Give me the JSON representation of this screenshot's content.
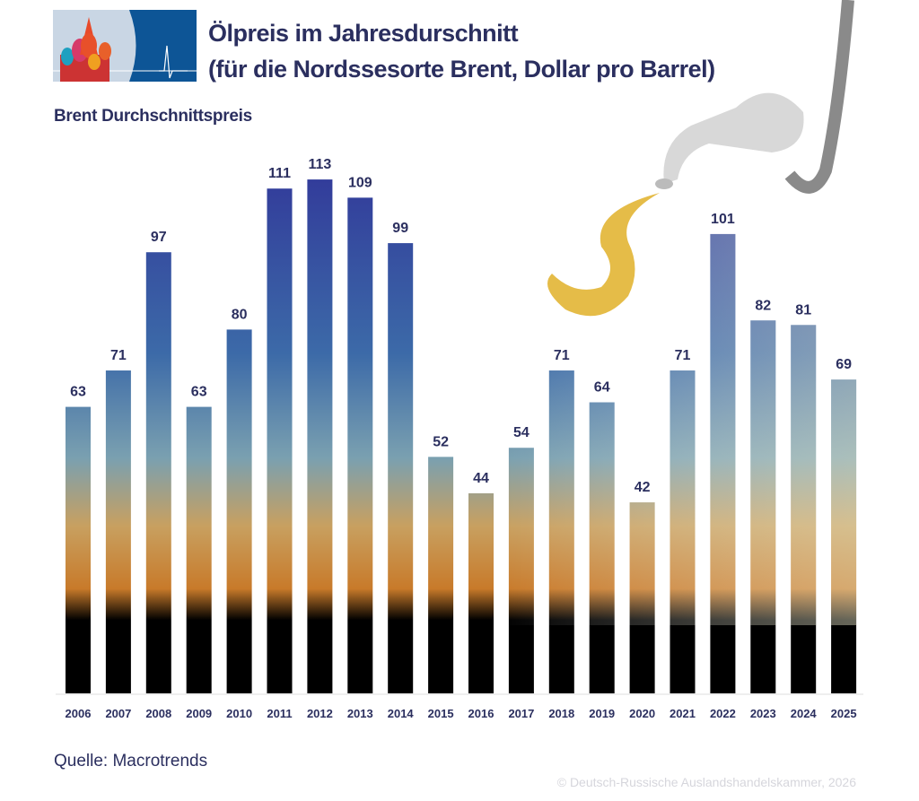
{
  "header": {
    "title_line1": "Ölpreis im Jahresdurschnitt",
    "title_line2": "(für die Nordssesorte Brent, Dollar pro Barrel)",
    "subtitle": "Brent Durchschnittspreis"
  },
  "footer": {
    "source": "Quelle: Macrotrends",
    "copyright": "© Deutsch-Russische Auslandshandelskammer, 2026"
  },
  "colors": {
    "text": "#2b2f5f",
    "bar_top": "#323a9a",
    "bar_mid": "#5f8fb0",
    "bar_low": "#d89a3a",
    "bar_base": "#000000"
  },
  "chart_data": {
    "type": "bar",
    "title": "Brent Durchschnittspreis",
    "xlabel": "",
    "ylabel": "Dollar pro Barrel",
    "categories": [
      "2006",
      "2007",
      "2008",
      "2009",
      "2010",
      "2011",
      "2012",
      "2013",
      "2014",
      "2015",
      "2016",
      "2017",
      "2018",
      "2019",
      "2020",
      "2021",
      "2022",
      "2023",
      "2024",
      "2025"
    ],
    "values": [
      63,
      71,
      97,
      63,
      80,
      111,
      113,
      109,
      99,
      52,
      44,
      54,
      71,
      64,
      42,
      71,
      101,
      82,
      81,
      69
    ],
    "ylim": [
      0,
      120
    ],
    "grid": false
  }
}
